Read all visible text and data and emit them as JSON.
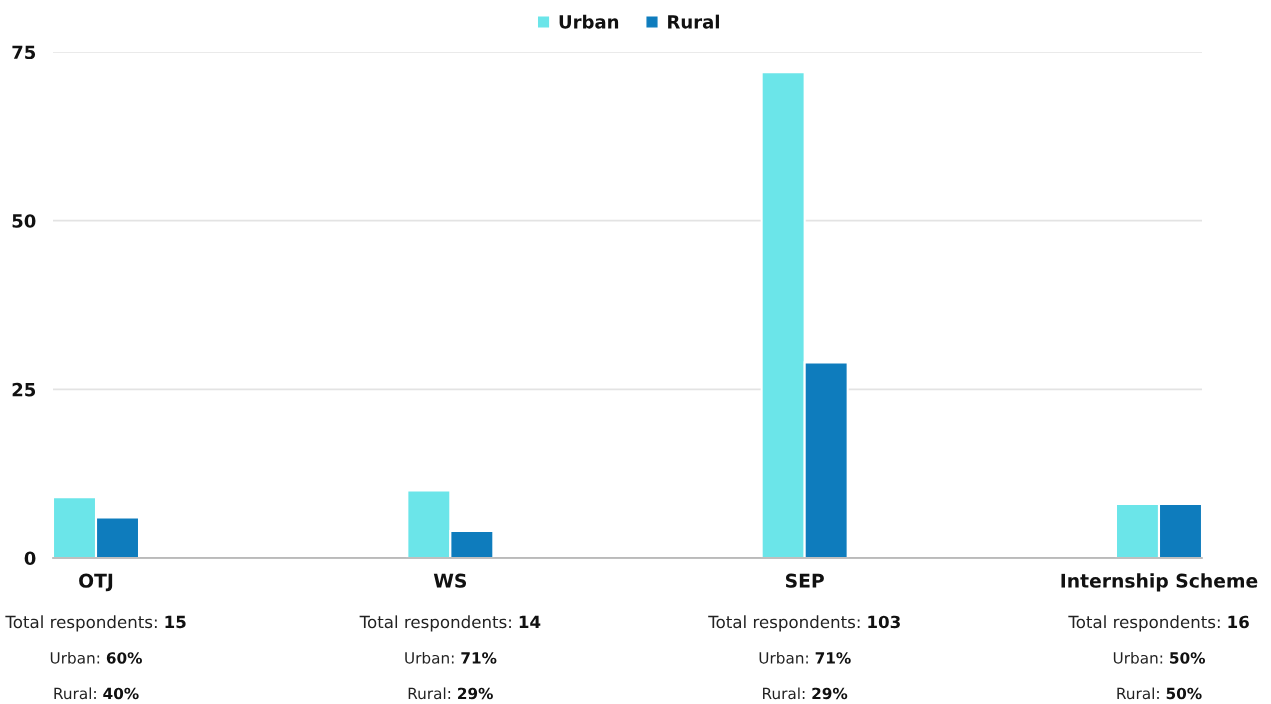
{
  "chart_data": {
    "type": "bar",
    "categories": [
      "OTJ",
      "WS",
      "SEP",
      "Internship Scheme"
    ],
    "series": [
      {
        "name": "Urban",
        "color": "#6be5e9",
        "values": [
          9,
          10,
          72,
          8
        ]
      },
      {
        "name": "Rural",
        "color": "#0e7cbd",
        "values": [
          6,
          4,
          29,
          8
        ]
      }
    ],
    "ylim": [
      0,
      75
    ],
    "yticks": [
      0,
      25,
      50,
      75
    ],
    "grid": "y",
    "legend": "top",
    "annotations": [
      "Total respondents: 15",
      "Urban: 60%",
      "Rural: 40%",
      "Total respondents: 14",
      "Urban: 71%",
      "Rural: 29%",
      "Total respondents: 103",
      "Urban: 71%",
      "Rural: 29%",
      "Total respondents: 16",
      "Urban: 50%",
      "Rural: 50%"
    ]
  }
}
